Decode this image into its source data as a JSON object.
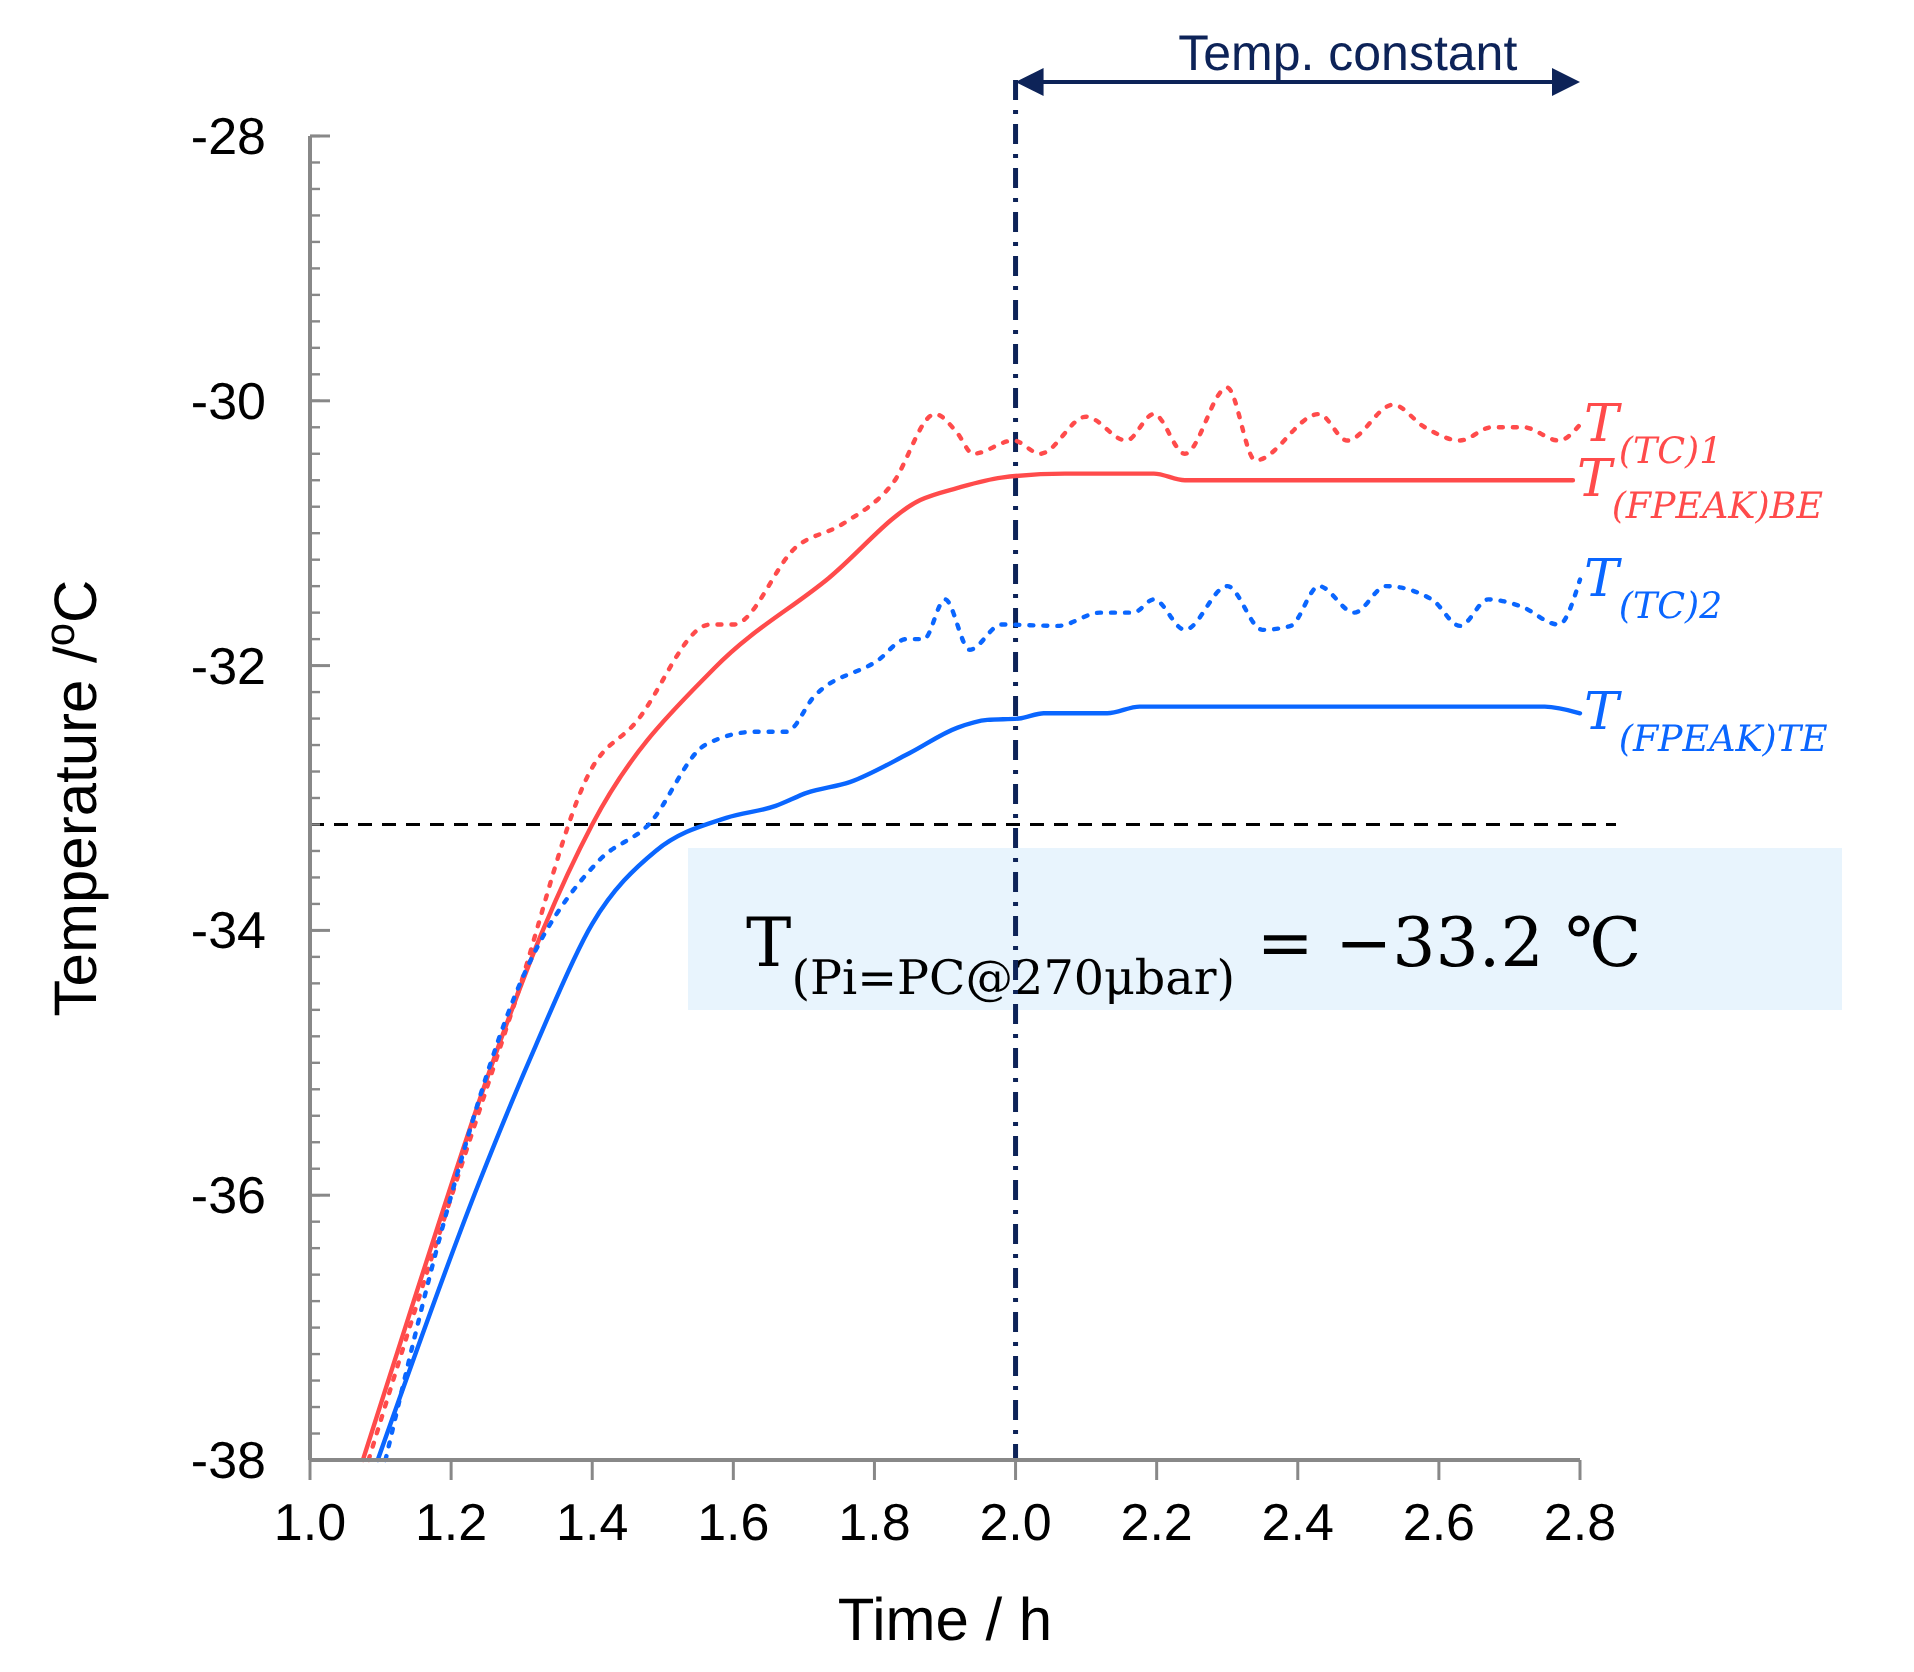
{
  "chart_data": {
    "type": "line",
    "xlabel": "Time / h",
    "ylabel": "Temperature /$^{o}$C",
    "xlim": [
      1.0,
      2.8
    ],
    "xticks": [
      {
        "value": 1.0,
        "label": "1.0"
      },
      {
        "value": 1.2,
        "label": "1.2"
      },
      {
        "value": 1.4,
        "label": "1.4"
      },
      {
        "value": 1.6,
        "label": "1.6"
      },
      {
        "value": 1.8,
        "label": "1.8"
      },
      {
        "value": 2.0,
        "label": "2.0"
      },
      {
        "value": 2.2,
        "label": "2.2"
      },
      {
        "value": 2.4,
        "label": "2.4"
      },
      {
        "value": 2.6,
        "label": "2.6"
      },
      {
        "value": 2.8,
        "label": "2.8"
      }
    ],
    "ylim": [
      -38,
      -28
    ],
    "yticks": [
      -38,
      -36,
      -34,
      -32,
      -30,
      -28
    ],
    "legend": false,
    "marker": "none",
    "series": [
      {
        "name": "T$_{(TC)1}$",
        "color": "#ff4b4b",
        "line_style": "dotted",
        "x": [
          1.083,
          1.147,
          1.29,
          1.4,
          1.46,
          1.567,
          1.6,
          1.69,
          1.755,
          1.825,
          1.886,
          1.917,
          1.94,
          1.997,
          2.035,
          2.1,
          2.157,
          2.196,
          2.24,
          2.3,
          2.34,
          2.43,
          2.47,
          2.535,
          2.58,
          2.63,
          2.675,
          2.72,
          2.77,
          2.8
        ],
        "values": [
          -38,
          -36.9,
          -34.55,
          -32.77,
          -32.44,
          -31.69,
          -31.69,
          -31.1,
          -30.93,
          -30.63,
          -30.1,
          -30.24,
          -30.4,
          -30.3,
          -30.4,
          -30.12,
          -30.3,
          -30.1,
          -30.4,
          -29.9,
          -30.45,
          -30.1,
          -30.3,
          -30.03,
          -30.2,
          -30.3,
          -30.2,
          -30.2,
          -30.3,
          -30.18
        ]
      },
      {
        "name": "T$_{(FPEAK)BE}$",
        "color": "#ff4b4b",
        "line_style": "solid",
        "x": [
          1.075,
          1.147,
          1.26,
          1.33,
          1.4,
          1.573,
          1.735,
          1.865,
          1.917,
          1.98,
          2.07,
          2.196,
          2.24,
          2.79
        ],
        "values": [
          -38,
          -36.8,
          -34.98,
          -34.0,
          -33.2,
          -32.02,
          -31.34,
          -30.75,
          -30.66,
          -30.58,
          -30.55,
          -30.55,
          -30.6,
          -30.6
        ]
      },
      {
        "name": "T$_{(TC)2}$",
        "color": "#0a66ff",
        "line_style": "dotted",
        "x": [
          1.107,
          1.19,
          1.29,
          1.41,
          1.48,
          1.56,
          1.63,
          1.675,
          1.715,
          1.805,
          1.845,
          1.87,
          1.9,
          1.935,
          1.98,
          2.06,
          2.12,
          2.167,
          2.196,
          2.24,
          2.3,
          2.35,
          2.39,
          2.43,
          2.48,
          2.525,
          2.59,
          2.63,
          2.67,
          2.715,
          2.77,
          2.8
        ],
        "values": [
          -38,
          -36.2,
          -34.5,
          -33.47,
          -33.2,
          -32.6,
          -32.5,
          -32.5,
          -32.23,
          -31.96,
          -31.8,
          -31.8,
          -31.5,
          -31.88,
          -31.69,
          -31.7,
          -31.6,
          -31.6,
          -31.5,
          -31.73,
          -31.4,
          -31.73,
          -31.7,
          -31.4,
          -31.6,
          -31.4,
          -31.5,
          -31.7,
          -31.5,
          -31.55,
          -31.69,
          -31.35
        ]
      },
      {
        "name": "T$_{(FPEAK)TE}$",
        "color": "#0a66ff",
        "line_style": "solid",
        "x": [
          1.096,
          1.24,
          1.32,
          1.4,
          1.49,
          1.59,
          1.66,
          1.705,
          1.765,
          1.85,
          1.917,
          1.96,
          2.005,
          2.04,
          2.13,
          2.176,
          2.75,
          2.8
        ],
        "values": [
          -38,
          -35.9,
          -34.87,
          -33.95,
          -33.4,
          -33.15,
          -33.06,
          -32.96,
          -32.88,
          -32.66,
          -32.47,
          -32.41,
          -32.4,
          -32.36,
          -32.36,
          -32.31,
          -32.31,
          -32.36
        ]
      }
    ],
    "ref_lines": [
      {
        "axis": "y",
        "value": -33.2,
        "color": "#000000",
        "line_style": "dashed"
      },
      {
        "axis": "x",
        "value": 2.0,
        "color": "#0d2358",
        "line_style": "dashdot"
      }
    ],
    "annotations": [
      "T$_{(Pi=PC@270μbar)}$ = −33.2 ℃",
      "Temp. constant"
    ]
  }
}
